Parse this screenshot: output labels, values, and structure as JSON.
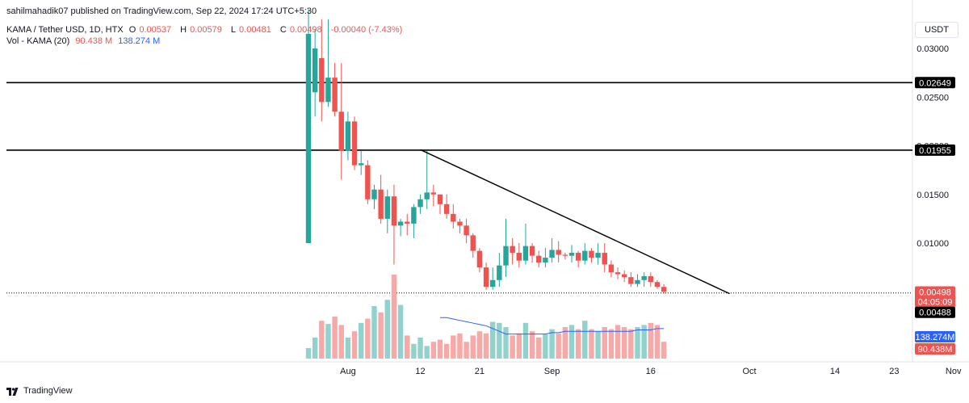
{
  "header": {
    "published": "sahilmahadik07 published on TradingView.com, Sep 22, 2024 17:24 UTC+5:30",
    "symbol": "KAMA / Tether USD, 1D, HTX",
    "o_label": "O",
    "o_value": "0.00537",
    "h_label": "H",
    "h_value": "0.00579",
    "l_label": "L",
    "l_value": "0.00481",
    "c_label": "C",
    "c_value": "0.00498",
    "change": "-0.00040 (-7.43%)",
    "vol_label": "Vol - KAMA (20)",
    "vol_value": "90.438 M",
    "vol_ma_value": "138.274 M"
  },
  "currency_button": "USDT",
  "footer": {
    "brand": "TradingView"
  },
  "chart_data": {
    "type": "candlestick",
    "title": "KAMA / Tether USD, 1D, HTX",
    "ylim": [
      0.0016,
      0.0325
    ],
    "y_ticks": [
      "0.03000",
      "0.02500",
      "0.02000",
      "0.01500",
      "0.01000"
    ],
    "x_ticks": [
      "Aug",
      "12",
      "21",
      "Sep",
      "16",
      "Oct",
      "14",
      "23",
      "Nov"
    ],
    "dates_start": "2024-07-26",
    "candles": [
      [
        0.01,
        0.0315,
        0.034,
        0.01
      ],
      [
        0.0255,
        0.03,
        0.032,
        0.023
      ],
      [
        0.029,
        0.0245,
        0.033,
        0.0225
      ],
      [
        0.0245,
        0.027,
        0.033,
        0.024
      ],
      [
        0.027,
        0.0235,
        0.0285,
        0.023
      ],
      [
        0.0235,
        0.0195,
        0.0285,
        0.0165
      ],
      [
        0.0195,
        0.0225,
        0.0235,
        0.0185
      ],
      [
        0.0225,
        0.018,
        0.023,
        0.0175
      ],
      [
        0.018,
        0.0182,
        0.0195,
        0.017
      ],
      [
        0.018,
        0.0145,
        0.0185,
        0.014
      ],
      [
        0.0145,
        0.0155,
        0.016,
        0.0135
      ],
      [
        0.0155,
        0.0125,
        0.017,
        0.012
      ],
      [
        0.0125,
        0.0148,
        0.0155,
        0.011
      ],
      [
        0.0148,
        0.0118,
        0.016,
        0.0078
      ],
      [
        0.0118,
        0.0122,
        0.0125,
        0.0107
      ],
      [
        0.0122,
        0.012,
        0.013,
        0.0108
      ],
      [
        0.012,
        0.0137,
        0.014,
        0.0105
      ],
      [
        0.0137,
        0.0145,
        0.015,
        0.013
      ],
      [
        0.0145,
        0.0152,
        0.0195,
        0.0135
      ],
      [
        0.0152,
        0.015,
        0.016,
        0.0138
      ],
      [
        0.015,
        0.014,
        0.015,
        0.013
      ],
      [
        0.014,
        0.013,
        0.015,
        0.0125
      ],
      [
        0.013,
        0.0122,
        0.014,
        0.0115
      ],
      [
        0.0122,
        0.0118,
        0.0125,
        0.011
      ],
      [
        0.0118,
        0.0108,
        0.0125,
        0.01
      ],
      [
        0.0108,
        0.0092,
        0.011,
        0.0085
      ],
      [
        0.0092,
        0.0075,
        0.0095,
        0.007
      ],
      [
        0.0075,
        0.0055,
        0.008,
        0.0052
      ],
      [
        0.0055,
        0.0062,
        0.0075,
        0.0052
      ],
      [
        0.0062,
        0.0077,
        0.009,
        0.0055
      ],
      [
        0.0077,
        0.0097,
        0.0125,
        0.0065
      ],
      [
        0.0097,
        0.009,
        0.0105,
        0.0078
      ],
      [
        0.009,
        0.0082,
        0.01,
        0.0075
      ],
      [
        0.0082,
        0.0097,
        0.012,
        0.0078
      ],
      [
        0.0097,
        0.0087,
        0.01,
        0.008
      ],
      [
        0.0087,
        0.008,
        0.0092,
        0.0075
      ],
      [
        0.008,
        0.0085,
        0.0095,
        0.0075
      ],
      [
        0.0085,
        0.0093,
        0.0105,
        0.008
      ],
      [
        0.0093,
        0.0088,
        0.0102,
        0.008
      ],
      [
        0.0088,
        0.0087,
        0.009,
        0.0083
      ],
      [
        0.0087,
        0.009,
        0.0098,
        0.008
      ],
      [
        0.009,
        0.0082,
        0.0092,
        0.0075
      ],
      [
        0.0082,
        0.0092,
        0.01,
        0.0078
      ],
      [
        0.0092,
        0.0085,
        0.0095,
        0.008
      ],
      [
        0.0085,
        0.009,
        0.01,
        0.0078
      ],
      [
        0.009,
        0.0078,
        0.01,
        0.007
      ],
      [
        0.0078,
        0.007,
        0.0082,
        0.0065
      ],
      [
        0.007,
        0.0068,
        0.0075,
        0.0063
      ],
      [
        0.0068,
        0.0065,
        0.0072,
        0.006
      ],
      [
        0.0065,
        0.0058,
        0.007,
        0.0055
      ],
      [
        0.0058,
        0.0062,
        0.0068,
        0.0055
      ],
      [
        0.0062,
        0.0066,
        0.007,
        0.0055
      ],
      [
        0.0066,
        0.006,
        0.007,
        0.0055
      ],
      [
        0.006,
        0.0055,
        0.0062,
        0.0053
      ],
      [
        0.0055,
        0.005,
        0.0058,
        0.0048
      ]
    ],
    "volume": [
      10,
      20,
      36,
      33,
      40,
      32,
      20,
      26,
      34,
      38,
      50,
      44,
      56,
      80,
      51,
      22,
      14,
      20,
      12,
      16,
      18,
      14,
      22,
      24,
      16,
      22,
      26,
      24,
      35,
      34,
      30,
      22,
      24,
      34,
      26,
      20,
      23,
      28,
      24,
      30,
      32,
      28,
      36,
      28,
      26,
      30,
      28,
      32,
      30,
      28,
      30,
      32,
      34,
      32,
      16
    ],
    "volume_ma": [
      null,
      null,
      null,
      null,
      null,
      null,
      null,
      null,
      null,
      null,
      null,
      null,
      null,
      null,
      null,
      null,
      null,
      null,
      null,
      null,
      30,
      30,
      29,
      28,
      27,
      26,
      25,
      24,
      22,
      20,
      18,
      18,
      18,
      18,
      18,
      18,
      18,
      19,
      19,
      20,
      20,
      20,
      20,
      20,
      20,
      20,
      20,
      20,
      20,
      20,
      21,
      21,
      21,
      22,
      22
    ],
    "horizontal_lines": [
      {
        "price": 0.02649,
        "label": "0.02649",
        "dotted": false
      },
      {
        "price": 0.01955,
        "label": "0.01955",
        "dotted": false
      },
      {
        "price": 0.00488,
        "label": "0.00488",
        "dotted": true
      }
    ],
    "trendline": {
      "from": {
        "date": "2024-08-12",
        "price": 0.0196
      },
      "to": {
        "date": "2024-09-28",
        "price": 0.0048
      }
    },
    "price_labels": [
      {
        "label": "0.00498",
        "sublabel": "04:05:09",
        "color": "#ef5350",
        "value": 0.00498
      },
      {
        "label": "0.00488",
        "color": "#000000",
        "value": 0.00488
      }
    ],
    "volume_labels": [
      {
        "label": "138.274M",
        "color": "#2962ff"
      },
      {
        "label": "90.438M",
        "color": "#ef5350"
      }
    ],
    "colors": {
      "up": "#26a69a",
      "down": "#ef5350",
      "up_volume": "#92d2cc",
      "down_volume": "#f7a9a7",
      "ma": "#2962ff"
    },
    "grid": false,
    "legend": "top-left"
  }
}
